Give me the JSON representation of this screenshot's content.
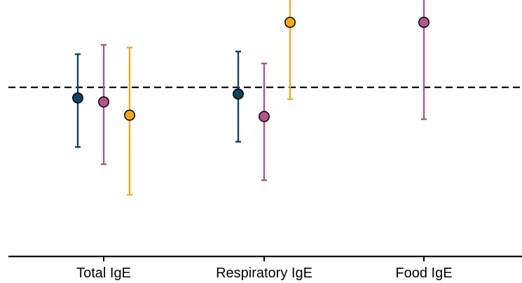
{
  "chart_data": {
    "type": "scatter",
    "title": "",
    "xlabel": "",
    "ylabel": "",
    "categories": [
      "Total IgE",
      "Respiratory IgE",
      "Food IgE"
    ],
    "reference_line": 1.0,
    "ylim": [
      0.0,
      2.1
    ],
    "grid": false,
    "legend": "none",
    "series": [
      {
        "color": "#0b4562",
        "points": [
          {
            "category": "Total IgE",
            "estimate": 0.92,
            "lower": 0.55,
            "upper": 1.25
          },
          {
            "category": "Respiratory IgE",
            "estimate": 0.95,
            "lower": 0.59,
            "upper": 1.27
          }
        ]
      },
      {
        "color": "#b5558f",
        "points": [
          {
            "category": "Total IgE",
            "estimate": 0.89,
            "lower": 0.42,
            "upper": 1.32
          },
          {
            "category": "Respiratory IgE",
            "estimate": 0.78,
            "lower": 0.3,
            "upper": 1.18
          },
          {
            "category": "Food IgE",
            "estimate": 1.49,
            "lower": 0.76,
            "upper": 2.1
          }
        ]
      },
      {
        "color": "#f5a81e",
        "points": [
          {
            "category": "Total IgE",
            "estimate": 0.79,
            "lower": 0.19,
            "upper": 1.3
          },
          {
            "category": "Respiratory IgE",
            "estimate": 1.49,
            "lower": 0.91,
            "upper": 2.1
          }
        ]
      }
    ]
  }
}
